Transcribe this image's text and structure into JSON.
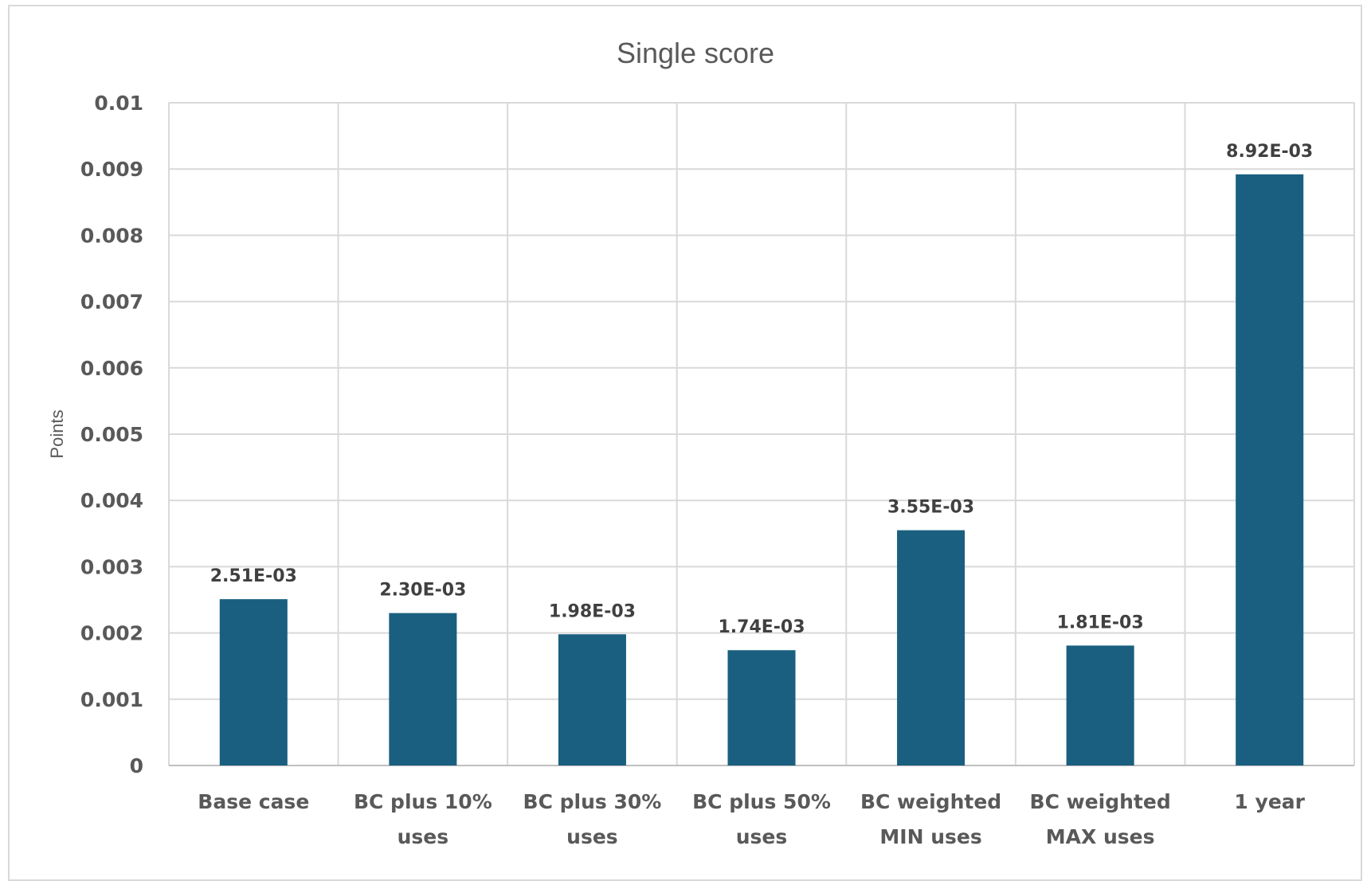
{
  "chart_data": {
    "type": "bar",
    "title": "Single score",
    "xlabel": "",
    "ylabel": "Points",
    "categories": [
      [
        "Base case"
      ],
      [
        "BC plus 10%",
        "uses"
      ],
      [
        "BC plus 30%",
        "uses"
      ],
      [
        "BC plus 50%",
        "uses"
      ],
      [
        "BC weighted",
        "MIN uses"
      ],
      [
        "BC weighted",
        "MAX uses"
      ],
      [
        "1 year"
      ]
    ],
    "values": [
      0.00251,
      0.0023,
      0.00198,
      0.00174,
      0.00355,
      0.00181,
      0.00892
    ],
    "data_labels": [
      "2.51E-03",
      "2.30E-03",
      "1.98E-03",
      "1.74E-03",
      "3.55E-03",
      "1.81E-03",
      "8.92E-03"
    ],
    "ylim": [
      0,
      0.01
    ],
    "yticks": [
      "0",
      "0.001",
      "0.002",
      "0.003",
      "0.004",
      "0.005",
      "0.006",
      "0.007",
      "0.008",
      "0.009",
      "0.01"
    ],
    "grid": true,
    "legend": "none",
    "bar_color": "#1a5f7f"
  }
}
